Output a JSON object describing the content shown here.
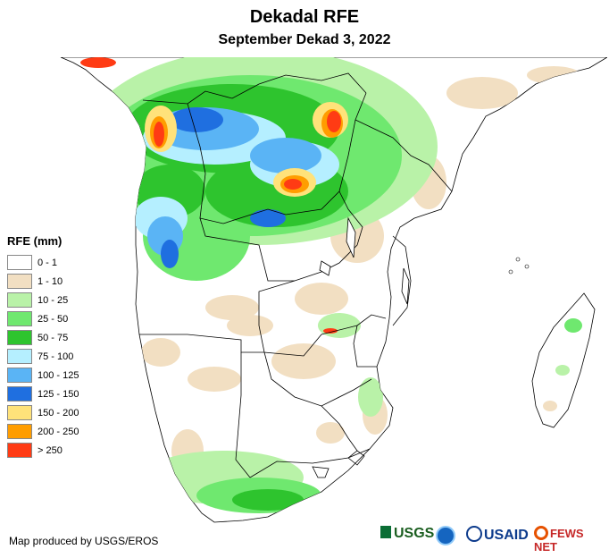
{
  "title": "Dekadal RFE",
  "subtitle": "September Dekad 3, 2022",
  "legend": {
    "title": "RFE (mm)",
    "items": [
      {
        "label": "0 - 1",
        "color": "#ffffff"
      },
      {
        "label": "1 - 10",
        "color": "#f2dfc2"
      },
      {
        "label": "10 - 25",
        "color": "#b9f2a8"
      },
      {
        "label": "25 - 50",
        "color": "#6fe86f"
      },
      {
        "label": "50 - 75",
        "color": "#2ec42e"
      },
      {
        "label": "75 - 100",
        "color": "#b5efff"
      },
      {
        "label": "100 - 125",
        "color": "#5ab4f5"
      },
      {
        "label": "125 - 150",
        "color": "#1f6fe0"
      },
      {
        "label": "150 - 200",
        "color": "#ffe27a"
      },
      {
        "label": "200 - 250",
        "color": "#ff9d00"
      },
      {
        "label": "> 250",
        "color": "#ff3b14"
      }
    ]
  },
  "credit": "Map produced by USGS/EROS",
  "logos": {
    "usgs": "USGS",
    "noaa": "noaa-logo-icon",
    "usaid": "USAID",
    "fews": "FEWS NET"
  },
  "colors": {
    "border": "#000000",
    "land": "#ffffff"
  }
}
